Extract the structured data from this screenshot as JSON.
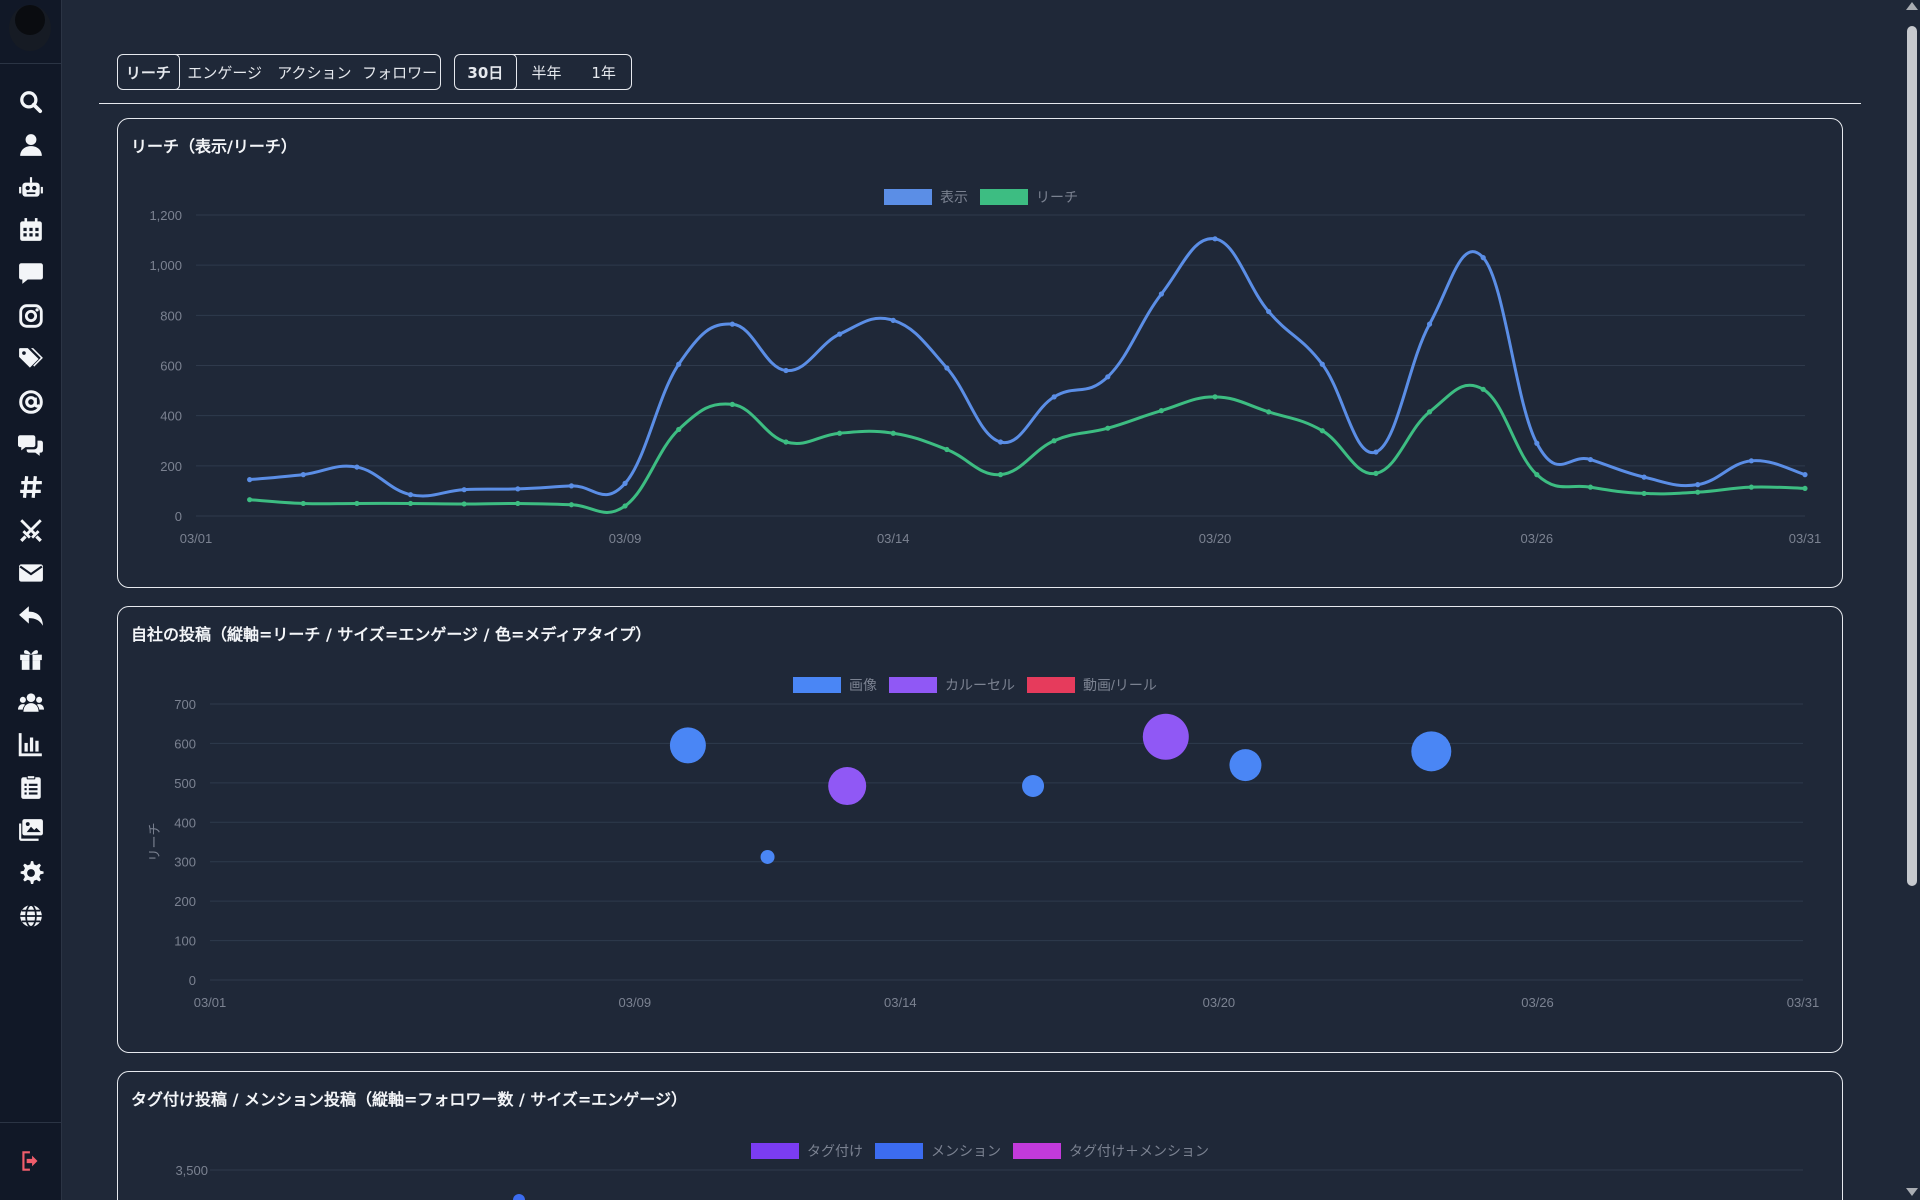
{
  "sidebar": {
    "items": [
      {
        "name": "search-icon",
        "icon": "search"
      },
      {
        "name": "user-icon",
        "icon": "user"
      },
      {
        "name": "robot-icon",
        "icon": "robot"
      },
      {
        "name": "calendar-icon",
        "icon": "calendar"
      },
      {
        "name": "comment-icon",
        "icon": "comment"
      },
      {
        "name": "instagram-icon",
        "icon": "instagram"
      },
      {
        "name": "tags-icon",
        "icon": "tags"
      },
      {
        "name": "at-icon",
        "icon": "at"
      },
      {
        "name": "comments-icon",
        "icon": "comments"
      },
      {
        "name": "hashtag-icon",
        "icon": "hashtag"
      },
      {
        "name": "swords-icon",
        "icon": "swords"
      },
      {
        "name": "envelope-icon",
        "icon": "envelope"
      },
      {
        "name": "reply-icon",
        "icon": "reply"
      },
      {
        "name": "gift-icon",
        "icon": "gift"
      },
      {
        "name": "users-icon",
        "icon": "users"
      },
      {
        "name": "bar-chart-icon",
        "icon": "barchart"
      },
      {
        "name": "clipboard-icon",
        "icon": "clipboard"
      },
      {
        "name": "images-icon",
        "icon": "images"
      },
      {
        "name": "gear-icon",
        "icon": "gear"
      },
      {
        "name": "globe-icon",
        "icon": "globe"
      }
    ],
    "logout": {
      "name": "logout-icon",
      "icon": "logout"
    }
  },
  "toolbar": {
    "metric_tabs": [
      "リーチ",
      "エンゲージ",
      "アクション",
      "フォロワー"
    ],
    "metric_active": 0,
    "period_tabs": [
      "30日",
      "半年",
      "1年"
    ],
    "period_active": 0
  },
  "colors": {
    "view": "#5b8ee6",
    "reach": "#3dbd82",
    "image": "#4a86f5",
    "carousel": "#9058f5",
    "video": "#e63b5c",
    "tagged": "#7b3cf2",
    "mention": "#3c6cf0",
    "tagged_mention": "#c23adb"
  },
  "panels": {
    "reach": {
      "title": "リーチ（表示/リーチ）"
    },
    "posts": {
      "title": "自社の投稿（縦軸=リーチ / サイズ=エンゲージ / 色=メディアタイプ）"
    },
    "tags": {
      "title": "タグ付け投稿 / メンション投稿（縦軸=フォロワー数 / サイズ=エンゲージ）"
    }
  },
  "chart_data": [
    {
      "type": "line",
      "title": "リーチ（表示/リーチ）",
      "x_ticks": [
        "03/01",
        "03/09",
        "03/14",
        "03/20",
        "03/26",
        "03/31"
      ],
      "x_tick_days": [
        1,
        9,
        14,
        20,
        26,
        31
      ],
      "x": [
        2,
        3,
        4,
        5,
        6,
        7,
        8,
        9,
        10,
        11,
        12,
        13,
        14,
        15,
        16,
        17,
        18,
        19,
        20,
        21,
        22,
        23,
        24,
        25,
        26,
        27,
        28,
        29,
        30,
        31
      ],
      "ylim": [
        0,
        1200
      ],
      "y_ticks": [
        0,
        200,
        400,
        600,
        800,
        1000,
        1200
      ],
      "y_tick_labels": [
        "0",
        "200",
        "400",
        "600",
        "800",
        "1,000",
        "1,200"
      ],
      "legend": "top-center",
      "grid": true,
      "series": [
        {
          "name": "表示",
          "color": "#5b8ee6",
          "values": [
            145,
            165,
            195,
            85,
            105,
            108,
            120,
            130,
            605,
            765,
            580,
            725,
            780,
            590,
            295,
            475,
            555,
            885,
            1105,
            815,
            605,
            255,
            765,
            1030,
            290,
            225,
            155,
            125,
            220,
            165
          ]
        },
        {
          "name": "リーチ",
          "color": "#3dbd82",
          "values": [
            65,
            50,
            50,
            50,
            48,
            50,
            45,
            40,
            345,
            445,
            295,
            330,
            330,
            265,
            165,
            300,
            350,
            420,
            475,
            415,
            340,
            170,
            415,
            505,
            165,
            115,
            90,
            95,
            115,
            110
          ]
        }
      ]
    },
    {
      "type": "scatter",
      "title": "自社の投稿（縦軸=リーチ / サイズ=エンゲージ / 色=メディアタイプ）",
      "ylabel": "リーチ",
      "x_ticks": [
        "03/01",
        "03/09",
        "03/14",
        "03/20",
        "03/26",
        "03/31"
      ],
      "x_tick_days": [
        1,
        9,
        14,
        20,
        26,
        31
      ],
      "ylim": [
        0,
        700
      ],
      "y_ticks": [
        0,
        100,
        200,
        300,
        400,
        500,
        600,
        700
      ],
      "legend": "top-center",
      "grid": true,
      "legend_entries": [
        {
          "name": "画像",
          "color": "#4a86f5"
        },
        {
          "name": "カルーセル",
          "color": "#9058f5"
        },
        {
          "name": "動画/リール",
          "color": "#e63b5c"
        }
      ],
      "points": [
        {
          "x": 10.0,
          "y": 595,
          "r": 18,
          "type": "画像"
        },
        {
          "x": 11.5,
          "y": 312,
          "r": 7,
          "type": "画像"
        },
        {
          "x": 13.0,
          "y": 492,
          "r": 19,
          "type": "カルーセル"
        },
        {
          "x": 16.5,
          "y": 492,
          "r": 11,
          "type": "画像"
        },
        {
          "x": 19.0,
          "y": 617,
          "r": 23,
          "type": "カルーセル"
        },
        {
          "x": 20.5,
          "y": 545,
          "r": 16,
          "type": "画像"
        },
        {
          "x": 24.0,
          "y": 580,
          "r": 20,
          "type": "画像"
        }
      ]
    },
    {
      "type": "scatter",
      "title": "タグ付け投稿 / メンション投稿（縦軸=フォロワー数 / サイズ=エンゲージ）",
      "y_ticks_visible": [
        "3,500"
      ],
      "legend": "top-center",
      "legend_entries": [
        {
          "name": "タグ付け",
          "color": "#7b3cf2"
        },
        {
          "name": "メンション",
          "color": "#3c6cf0"
        },
        {
          "name": "タグ付け＋メンション",
          "color": "#c23adb"
        }
      ]
    }
  ]
}
